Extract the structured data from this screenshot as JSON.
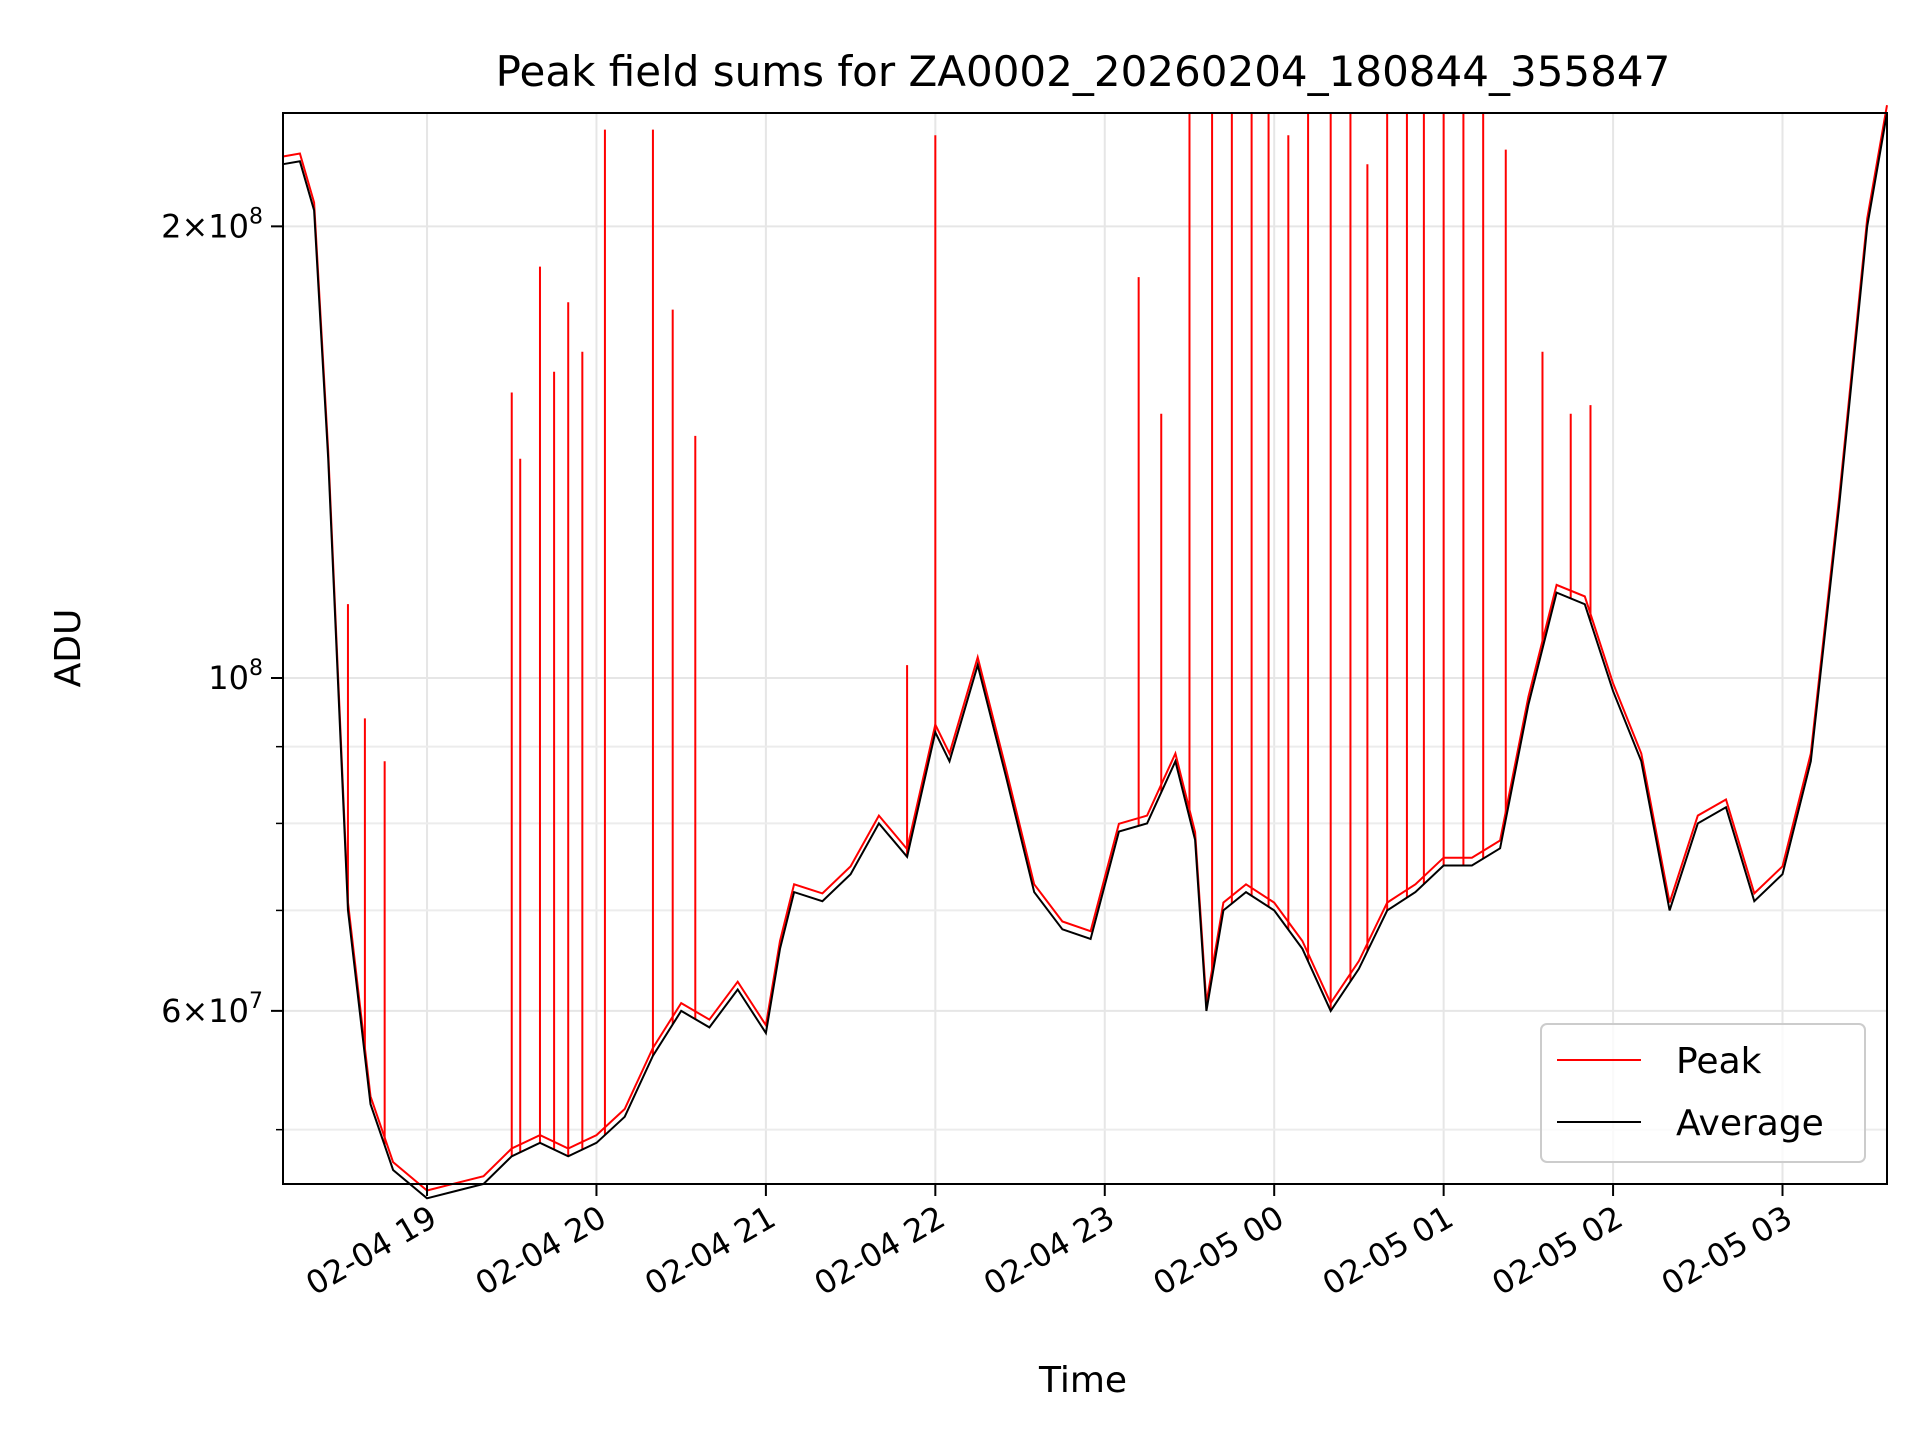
{
  "chart_data": {
    "type": "line",
    "title": "Peak field sums for ZA0002_20260204_180844_355847",
    "xlabel": "Time",
    "ylabel": "ADU",
    "yscale": "log",
    "grid": true,
    "legend_position": "lower-right",
    "xlim": [
      "2026-02-04 18:09",
      "2026-02-05 03:37"
    ],
    "ylim": [
      46000000.0,
      238000000.0
    ],
    "x_ticks": [
      {
        "value": "2026-02-04 19:00",
        "label": "02-04 19"
      },
      {
        "value": "2026-02-04 20:00",
        "label": "02-04 20"
      },
      {
        "value": "2026-02-04 21:00",
        "label": "02-04 21"
      },
      {
        "value": "2026-02-04 22:00",
        "label": "02-04 22"
      },
      {
        "value": "2026-02-04 23:00",
        "label": "02-04 23"
      },
      {
        "value": "2026-02-05 00:00",
        "label": "02-05 00"
      },
      {
        "value": "2026-02-05 01:00",
        "label": "02-05 01"
      },
      {
        "value": "2026-02-05 02:00",
        "label": "02-05 02"
      },
      {
        "value": "2026-02-05 03:00",
        "label": "02-05 03"
      }
    ],
    "y_ticks": [
      {
        "value": 60000000,
        "mantissa": "6",
        "exponent": "7"
      },
      {
        "value": 100000000,
        "mantissa": "",
        "exponent": "8"
      },
      {
        "value": 200000000,
        "mantissa": "2",
        "exponent": "8"
      }
    ],
    "y_minor_ticks": [
      50000000,
      70000000,
      80000000,
      90000000
    ],
    "series": [
      {
        "name": "Average",
        "color": "#000000",
        "x": [
          "2026-02-04 18:09",
          "2026-02-04 18:15",
          "2026-02-04 18:20",
          "2026-02-04 18:25",
          "2026-02-04 18:32",
          "2026-02-04 18:40",
          "2026-02-04 18:48",
          "2026-02-04 19:00",
          "2026-02-04 19:10",
          "2026-02-04 19:20",
          "2026-02-04 19:30",
          "2026-02-04 19:40",
          "2026-02-04 19:50",
          "2026-02-04 20:00",
          "2026-02-04 20:10",
          "2026-02-04 20:20",
          "2026-02-04 20:30",
          "2026-02-04 20:40",
          "2026-02-04 20:50",
          "2026-02-04 21:00",
          "2026-02-04 21:05",
          "2026-02-04 21:10",
          "2026-02-04 21:20",
          "2026-02-04 21:30",
          "2026-02-04 21:40",
          "2026-02-04 21:50",
          "2026-02-04 22:00",
          "2026-02-04 22:05",
          "2026-02-04 22:15",
          "2026-02-04 22:25",
          "2026-02-04 22:35",
          "2026-02-04 22:45",
          "2026-02-04 22:55",
          "2026-02-04 23:05",
          "2026-02-04 23:15",
          "2026-02-04 23:25",
          "2026-02-04 23:32",
          "2026-02-04 23:36",
          "2026-02-04 23:42",
          "2026-02-04 23:50",
          "2026-02-05 00:00",
          "2026-02-05 00:10",
          "2026-02-05 00:20",
          "2026-02-05 00:30",
          "2026-02-05 00:40",
          "2026-02-05 00:50",
          "2026-02-05 01:00",
          "2026-02-05 01:10",
          "2026-02-05 01:20",
          "2026-02-05 01:30",
          "2026-02-05 01:40",
          "2026-02-05 01:50",
          "2026-02-05 02:00",
          "2026-02-05 02:10",
          "2026-02-05 02:20",
          "2026-02-05 02:30",
          "2026-02-05 02:40",
          "2026-02-05 02:50",
          "2026-02-05 03:00",
          "2026-02-05 03:10",
          "2026-02-05 03:20",
          "2026-02-05 03:30",
          "2026-02-05 03:37"
        ],
        "values": [
          220000000,
          221000000,
          205000000,
          140000000,
          70000000,
          52000000,
          47000000,
          45000000,
          45500000,
          46000000,
          48000000,
          49000000,
          48000000,
          49000000,
          51000000,
          56000000,
          60000000,
          58500000,
          62000000,
          58000000,
          66000000,
          72000000,
          71000000,
          74000000,
          80000000,
          76000000,
          92000000,
          88000000,
          102000000,
          86000000,
          72000000,
          68000000,
          67000000,
          79000000,
          80000000,
          88000000,
          78000000,
          60000000,
          70000000,
          72000000,
          70000000,
          66000000,
          60000000,
          64000000,
          70000000,
          72000000,
          75000000,
          75000000,
          77000000,
          96000000,
          114000000,
          112000000,
          98000000,
          88000000,
          70000000,
          80000000,
          82000000,
          71000000,
          74000000,
          88000000,
          130000000,
          200000000,
          238000000
        ]
      },
      {
        "name": "Peak",
        "color": "#ff0000",
        "spike_times": [
          "2026-02-04 18:32",
          "2026-02-04 18:38",
          "2026-02-04 18:45",
          "2026-02-04 19:30",
          "2026-02-04 19:33",
          "2026-02-04 19:40",
          "2026-02-04 19:45",
          "2026-02-04 19:50",
          "2026-02-04 19:55",
          "2026-02-04 20:03",
          "2026-02-04 20:20",
          "2026-02-04 20:27",
          "2026-02-04 20:35",
          "2026-02-04 21:50",
          "2026-02-04 22:00",
          "2026-02-04 23:12",
          "2026-02-04 23:20",
          "2026-02-04 23:30",
          "2026-02-04 23:38",
          "2026-02-04 23:45",
          "2026-02-04 23:52",
          "2026-02-04 23:58",
          "2026-02-05 00:05",
          "2026-02-05 00:12",
          "2026-02-05 00:20",
          "2026-02-05 00:27",
          "2026-02-05 00:33",
          "2026-02-05 00:40",
          "2026-02-05 00:47",
          "2026-02-05 00:53",
          "2026-02-05 01:00",
          "2026-02-05 01:07",
          "2026-02-05 01:14",
          "2026-02-05 01:22",
          "2026-02-05 01:35",
          "2026-02-05 01:45",
          "2026-02-05 01:52"
        ],
        "spike_values": [
          112000000,
          94000000,
          88000000,
          155000000,
          140000000,
          188000000,
          160000000,
          178000000,
          165000000,
          232000000,
          232000000,
          176000000,
          145000000,
          102000000,
          230000000,
          185000000,
          150000000,
          238000000,
          238000000,
          238000000,
          238000000,
          238000000,
          230000000,
          238000000,
          238000000,
          238000000,
          220000000,
          238000000,
          238000000,
          238000000,
          238000000,
          238000000,
          238000000,
          225000000,
          165000000,
          150000000,
          152000000
        ]
      }
    ]
  }
}
